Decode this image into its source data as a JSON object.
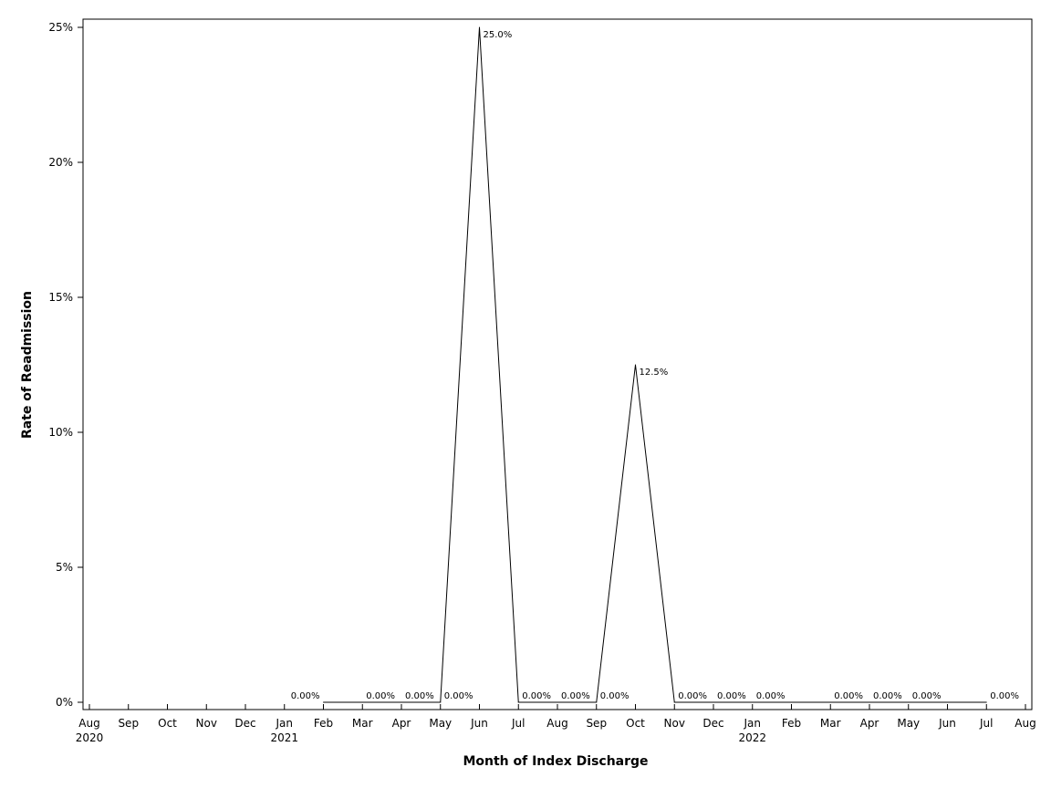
{
  "chart_data": {
    "type": "line",
    "title": "",
    "xlabel": "Month of Index Discharge",
    "ylabel": "Rate of Readmission",
    "ylim": [
      0,
      25
    ],
    "yticks": [
      {
        "value": 0,
        "label": "0%"
      },
      {
        "value": 5,
        "label": "5%"
      },
      {
        "value": 10,
        "label": "10%"
      },
      {
        "value": 15,
        "label": "15%"
      },
      {
        "value": 20,
        "label": "20%"
      },
      {
        "value": 25,
        "label": "25%"
      }
    ],
    "xticks": [
      {
        "date": "2020-08",
        "label": "Aug",
        "year": "2020"
      },
      {
        "date": "2020-09",
        "label": "Sep",
        "year": ""
      },
      {
        "date": "2020-10",
        "label": "Oct",
        "year": ""
      },
      {
        "date": "2020-11",
        "label": "Nov",
        "year": ""
      },
      {
        "date": "2020-12",
        "label": "Dec",
        "year": ""
      },
      {
        "date": "2021-01",
        "label": "Jan",
        "year": "2021"
      },
      {
        "date": "2021-02",
        "label": "Feb",
        "year": ""
      },
      {
        "date": "2021-03",
        "label": "Mar",
        "year": ""
      },
      {
        "date": "2021-04",
        "label": "Apr",
        "year": ""
      },
      {
        "date": "2021-05",
        "label": "May",
        "year": ""
      },
      {
        "date": "2021-06",
        "label": "Jun",
        "year": ""
      },
      {
        "date": "2021-07",
        "label": "Jul",
        "year": ""
      },
      {
        "date": "2021-08",
        "label": "Aug",
        "year": ""
      },
      {
        "date": "2021-09",
        "label": "Sep",
        "year": ""
      },
      {
        "date": "2021-10",
        "label": "Oct",
        "year": ""
      },
      {
        "date": "2021-11",
        "label": "Nov",
        "year": ""
      },
      {
        "date": "2021-12",
        "label": "Dec",
        "year": ""
      },
      {
        "date": "2022-01",
        "label": "Jan",
        "year": "2022"
      },
      {
        "date": "2022-02",
        "label": "Feb",
        "year": ""
      },
      {
        "date": "2022-03",
        "label": "Mar",
        "year": ""
      },
      {
        "date": "2022-04",
        "label": "Apr",
        "year": ""
      },
      {
        "date": "2022-05",
        "label": "May",
        "year": ""
      },
      {
        "date": "2022-06",
        "label": "Jun",
        "year": ""
      },
      {
        "date": "2022-07",
        "label": "Jul",
        "year": ""
      },
      {
        "date": "2022-08",
        "label": "Aug",
        "year": ""
      }
    ],
    "points": [
      {
        "date": "2021-02",
        "value": 0,
        "label": "0.00%"
      },
      {
        "date": "2021-03",
        "value": 0,
        "label": "0.00%"
      },
      {
        "date": "2021-04",
        "value": 0,
        "label": "0.00%"
      },
      {
        "date": "2021-05",
        "value": 0,
        "label": "0.00%"
      },
      {
        "date": "2021-06",
        "value": 25.0,
        "label": "25.0%"
      },
      {
        "date": "2021-07",
        "value": 0,
        "label": "0.00%"
      },
      {
        "date": "2021-08",
        "value": 0,
        "label": "0.00%"
      },
      {
        "date": "2021-09",
        "value": 0,
        "label": "0.00%"
      },
      {
        "date": "2021-10",
        "value": 12.5,
        "label": "12.5%"
      },
      {
        "date": "2021-11",
        "value": 0,
        "label": "0.00%"
      },
      {
        "date": "2021-12",
        "value": 0,
        "label": "0.00%"
      },
      {
        "date": "2022-01",
        "value": 0,
        "label": "0.00%"
      },
      {
        "date": "2022-03",
        "value": 0,
        "label": "0.00%"
      },
      {
        "date": "2022-04",
        "value": 0,
        "label": "0.00%"
      },
      {
        "date": "2022-05",
        "value": 0,
        "label": "0.00%"
      },
      {
        "date": "2022-07",
        "value": 0,
        "label": "0.00%"
      }
    ],
    "grid": false,
    "legend": "none",
    "line_color": "#000000"
  }
}
